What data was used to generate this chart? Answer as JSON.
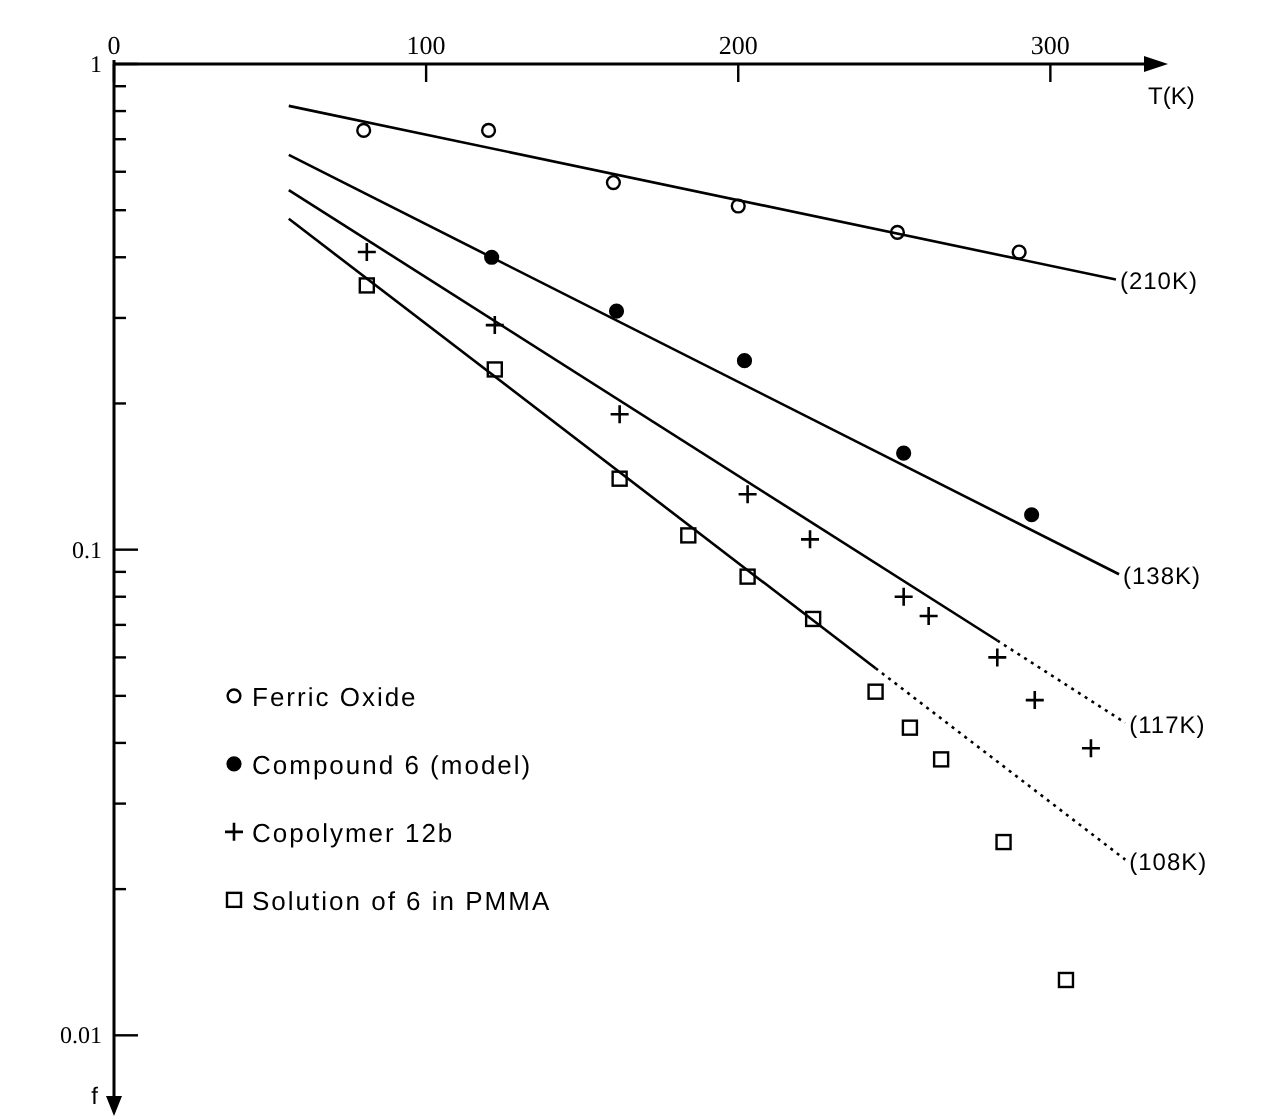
{
  "chart_data": {
    "type": "scatter",
    "xlabel": "T(K)",
    "ylabel": "f",
    "log": "y",
    "xlim": [
      0,
      330
    ],
    "ylim": [
      0.0075,
      1
    ],
    "xticks": [
      0,
      100,
      200,
      300
    ],
    "yticks": [
      {
        "value": 0.01,
        "label": "0.01"
      },
      {
        "value": 0.02,
        "label": null
      },
      {
        "value": 0.03,
        "label": null
      },
      {
        "value": 0.04,
        "label": null
      },
      {
        "value": 0.05,
        "label": null
      },
      {
        "value": 0.06,
        "label": null
      },
      {
        "value": 0.07,
        "label": null
      },
      {
        "value": 0.08,
        "label": null
      },
      {
        "value": 0.09,
        "label": null
      },
      {
        "value": 0.1,
        "label": "0.1"
      },
      {
        "value": 0.2,
        "label": null
      },
      {
        "value": 0.3,
        "label": null
      },
      {
        "value": 0.4,
        "label": null
      },
      {
        "value": 0.5,
        "label": null
      },
      {
        "value": 0.6,
        "label": null
      },
      {
        "value": 0.7,
        "label": null
      },
      {
        "value": 0.8,
        "label": null
      },
      {
        "value": 0.9,
        "label": null
      },
      {
        "value": 1,
        "label": "1"
      }
    ],
    "grid": false,
    "legend": "bottom left",
    "series": [
      {
        "name": "Ferric Oxide",
        "marker": "circle",
        "color": "#ffffff",
        "x": [
          80,
          120,
          160,
          200,
          251,
          290
        ],
        "values": [
          0.73,
          0.73,
          0.57,
          0.51,
          0.45,
          0.41
        ]
      },
      {
        "name": "Compound 6 (model)",
        "marker": "circle",
        "color": "#000000",
        "x": [
          121,
          161,
          202,
          253,
          294
        ],
        "values": [
          0.4,
          0.31,
          0.245,
          0.158,
          0.118
        ]
      },
      {
        "name": "Copolymer 12b",
        "marker": "cross",
        "color": "#000000",
        "x": [
          81,
          122,
          162,
          203,
          223,
          253,
          261,
          283,
          295,
          313
        ],
        "values": [
          0.41,
          0.29,
          0.19,
          0.13,
          0.105,
          0.08,
          0.073,
          0.06,
          0.049,
          0.039
        ]
      },
      {
        "name": "Solution of 6 in PMMA",
        "marker": "square",
        "color": "#ffffff",
        "x": [
          81,
          122,
          162,
          184,
          203,
          224,
          244,
          255,
          265,
          285,
          305
        ],
        "values": [
          0.35,
          0.235,
          0.14,
          0.107,
          0.088,
          0.072,
          0.051,
          0.043,
          0.037,
          0.025,
          0.013
        ]
      },
      {
        "type": "line",
        "marker": "none",
        "line_style": "solid",
        "color": "#000000",
        "x": [
          56,
          321
        ],
        "values": [
          0.82,
          0.36
        ]
      },
      {
        "type": "line",
        "marker": "none",
        "line_style": "solid",
        "color": "#000000",
        "x": [
          56,
          322
        ],
        "values": [
          0.65,
          0.089
        ]
      },
      {
        "type": "line",
        "marker": "none",
        "line_style": "solid",
        "color": "#000000",
        "x": [
          56,
          283
        ],
        "values": [
          0.55,
          0.065
        ]
      },
      {
        "type": "line",
        "marker": "none",
        "line_style": "dotted",
        "color": "#000000",
        "x": [
          283,
          324
        ],
        "values": [
          0.065,
          0.044
        ]
      },
      {
        "type": "line",
        "marker": "none",
        "line_style": "solid",
        "color": "#000000",
        "x": [
          56,
          244
        ],
        "values": [
          0.48,
          0.057
        ]
      },
      {
        "type": "line",
        "marker": "none",
        "line_style": "dotted",
        "color": "#000000",
        "x": [
          244,
          324
        ],
        "values": [
          0.057,
          0.023
        ]
      }
    ],
    "annotations": [
      {
        "text": "(210K)",
        "x": 321,
        "y": 0.36
      },
      {
        "text": "(138K)",
        "x": 322,
        "y": 0.089
      },
      {
        "text": "(117K)",
        "x": 324,
        "y": 0.044
      },
      {
        "text": "(108K)",
        "x": 324,
        "y": 0.023
      }
    ]
  }
}
